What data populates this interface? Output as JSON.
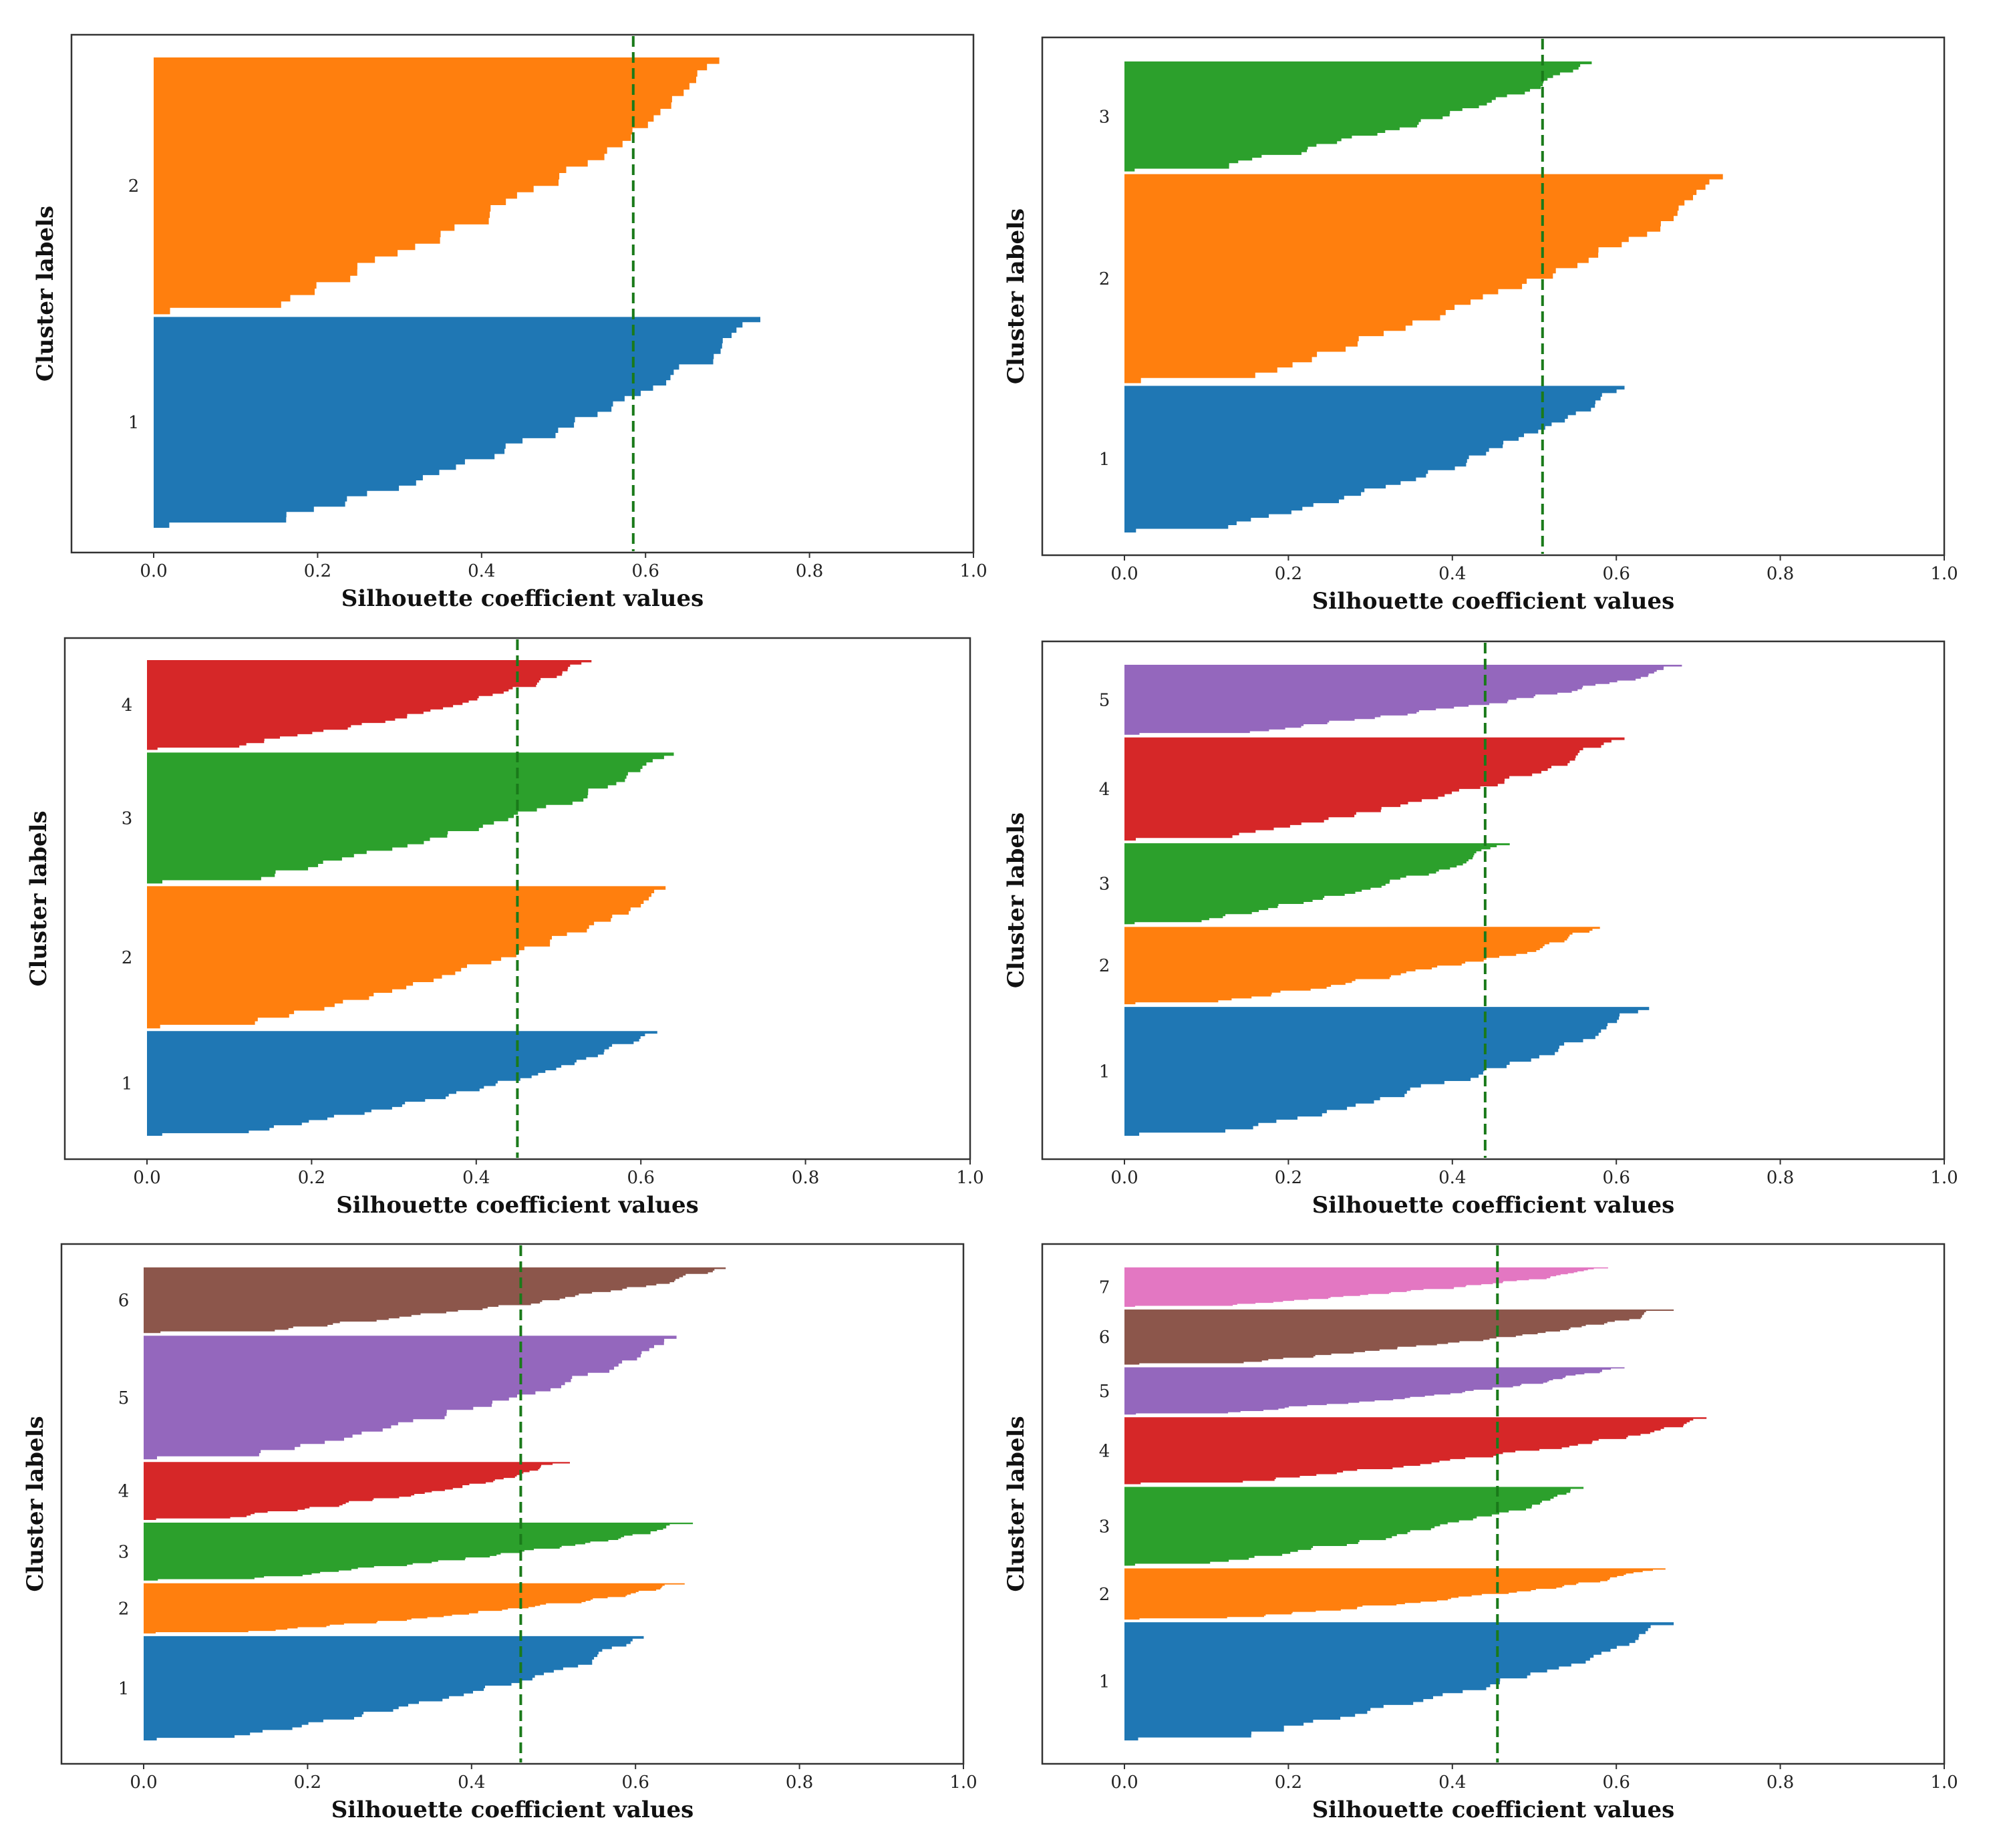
{
  "colors": {
    "1": "#1f77b4",
    "2": "#ff7f0e",
    "3": "#2ca02c",
    "4": "#d62728",
    "5": "#9467bd",
    "6": "#8c564b",
    "7": "#e377c2",
    "average_line": "#1a7a1a"
  },
  "chart_data": [
    {
      "type": "silhouette",
      "xlabel": "Silhouette coefficient values",
      "ylabel": "Cluster labels",
      "xlim": [
        0.0,
        1.0
      ],
      "xticks": [
        "0.0",
        "0.2",
        "0.4",
        "0.6",
        "0.8",
        "1.0"
      ],
      "average_silhouette": 0.585,
      "clusters": [
        {
          "label": "1",
          "size": 55,
          "max": 0.74,
          "min": 0.0,
          "color": "#1f77b4"
        },
        {
          "label": "2",
          "size": 67,
          "max": 0.69,
          "min": 0.0,
          "color": "#ff7f0e"
        }
      ]
    },
    {
      "type": "silhouette",
      "xlabel": "Silhouette coefficient values",
      "ylabel": "Cluster labels",
      "xlim": [
        0.0,
        1.0
      ],
      "xticks": [
        "0.0",
        "0.2",
        "0.4",
        "0.6",
        "0.8",
        "1.0"
      ],
      "average_silhouette": 0.51,
      "clusters": [
        {
          "label": "1",
          "size": 40,
          "max": 0.61,
          "min": 0.0,
          "color": "#1f77b4"
        },
        {
          "label": "2",
          "size": 57,
          "max": 0.73,
          "min": 0.0,
          "color": "#ff7f0e"
        },
        {
          "label": "3",
          "size": 30,
          "max": 0.57,
          "min": 0.0,
          "color": "#2ca02c"
        }
      ]
    },
    {
      "type": "silhouette",
      "xlabel": "Silhouette coefficient values",
      "ylabel": "Cluster labels",
      "xlim": [
        0.0,
        1.0
      ],
      "xticks": [
        "0.0",
        "0.2",
        "0.4",
        "0.6",
        "0.8",
        "1.0"
      ],
      "average_silhouette": 0.45,
      "clusters": [
        {
          "label": "1",
          "size": 28,
          "max": 0.62,
          "min": 0.0,
          "color": "#1f77b4"
        },
        {
          "label": "2",
          "size": 38,
          "max": 0.63,
          "min": 0.0,
          "color": "#ff7f0e"
        },
        {
          "label": "3",
          "size": 35,
          "max": 0.64,
          "min": 0.0,
          "color": "#2ca02c"
        },
        {
          "label": "4",
          "size": 24,
          "max": 0.54,
          "min": 0.0,
          "color": "#d62728"
        }
      ]
    },
    {
      "type": "silhouette",
      "xlabel": "Silhouette coefficient values",
      "ylabel": "Cluster labels",
      "xlim": [
        0.0,
        1.0
      ],
      "xticks": [
        "0.0",
        "0.2",
        "0.4",
        "0.6",
        "0.8",
        "1.0"
      ],
      "average_silhouette": 0.44,
      "clusters": [
        {
          "label": "1",
          "size": 35,
          "max": 0.64,
          "min": 0.0,
          "color": "#1f77b4"
        },
        {
          "label": "2",
          "size": 21,
          "max": 0.58,
          "min": 0.0,
          "color": "#ff7f0e"
        },
        {
          "label": "3",
          "size": 22,
          "max": 0.47,
          "min": 0.0,
          "color": "#2ca02c"
        },
        {
          "label": "4",
          "size": 28,
          "max": 0.61,
          "min": 0.0,
          "color": "#d62728"
        },
        {
          "label": "5",
          "size": 19,
          "max": 0.68,
          "min": 0.0,
          "color": "#9467bd"
        }
      ]
    },
    {
      "type": "silhouette",
      "xlabel": "Silhouette coefficient values",
      "ylabel": "Cluster labels",
      "xlim": [
        0.0,
        1.0
      ],
      "xticks": [
        "0.0",
        "0.2",
        "0.4",
        "0.6",
        "0.8",
        "1.0"
      ],
      "average_silhouette": 0.46,
      "clusters": [
        {
          "label": "1",
          "size": 27,
          "max": 0.61,
          "min": 0.0,
          "color": "#1f77b4"
        },
        {
          "label": "2",
          "size": 13,
          "max": 0.66,
          "min": 0.0,
          "color": "#ff7f0e"
        },
        {
          "label": "3",
          "size": 15,
          "max": 0.67,
          "min": 0.0,
          "color": "#2ca02c"
        },
        {
          "label": "4",
          "size": 15,
          "max": 0.52,
          "min": 0.0,
          "color": "#d62728"
        },
        {
          "label": "5",
          "size": 32,
          "max": 0.65,
          "min": 0.0,
          "color": "#9467bd"
        },
        {
          "label": "6",
          "size": 17,
          "max": 0.71,
          "min": 0.0,
          "color": "#8c564b"
        }
      ]
    },
    {
      "type": "silhouette",
      "xlabel": "Silhouette coefficient values",
      "ylabel": "Cluster labels",
      "xlim": [
        0.0,
        1.0
      ],
      "xticks": [
        "0.0",
        "0.2",
        "0.4",
        "0.6",
        "0.8",
        "1.0"
      ],
      "average_silhouette": 0.455,
      "clusters": [
        {
          "label": "1",
          "size": 30,
          "max": 0.67,
          "min": 0.0,
          "color": "#1f77b4"
        },
        {
          "label": "2",
          "size": 13,
          "max": 0.66,
          "min": 0.0,
          "color": "#ff7f0e"
        },
        {
          "label": "3",
          "size": 20,
          "max": 0.56,
          "min": 0.0,
          "color": "#2ca02c"
        },
        {
          "label": "4",
          "size": 17,
          "max": 0.71,
          "min": 0.0,
          "color": "#d62728"
        },
        {
          "label": "5",
          "size": 12,
          "max": 0.61,
          "min": 0.0,
          "color": "#9467bd"
        },
        {
          "label": "6",
          "size": 14,
          "max": 0.67,
          "min": 0.0,
          "color": "#8c564b"
        },
        {
          "label": "7",
          "size": 10,
          "max": 0.59,
          "min": 0.0,
          "color": "#e377c2"
        }
      ]
    }
  ]
}
